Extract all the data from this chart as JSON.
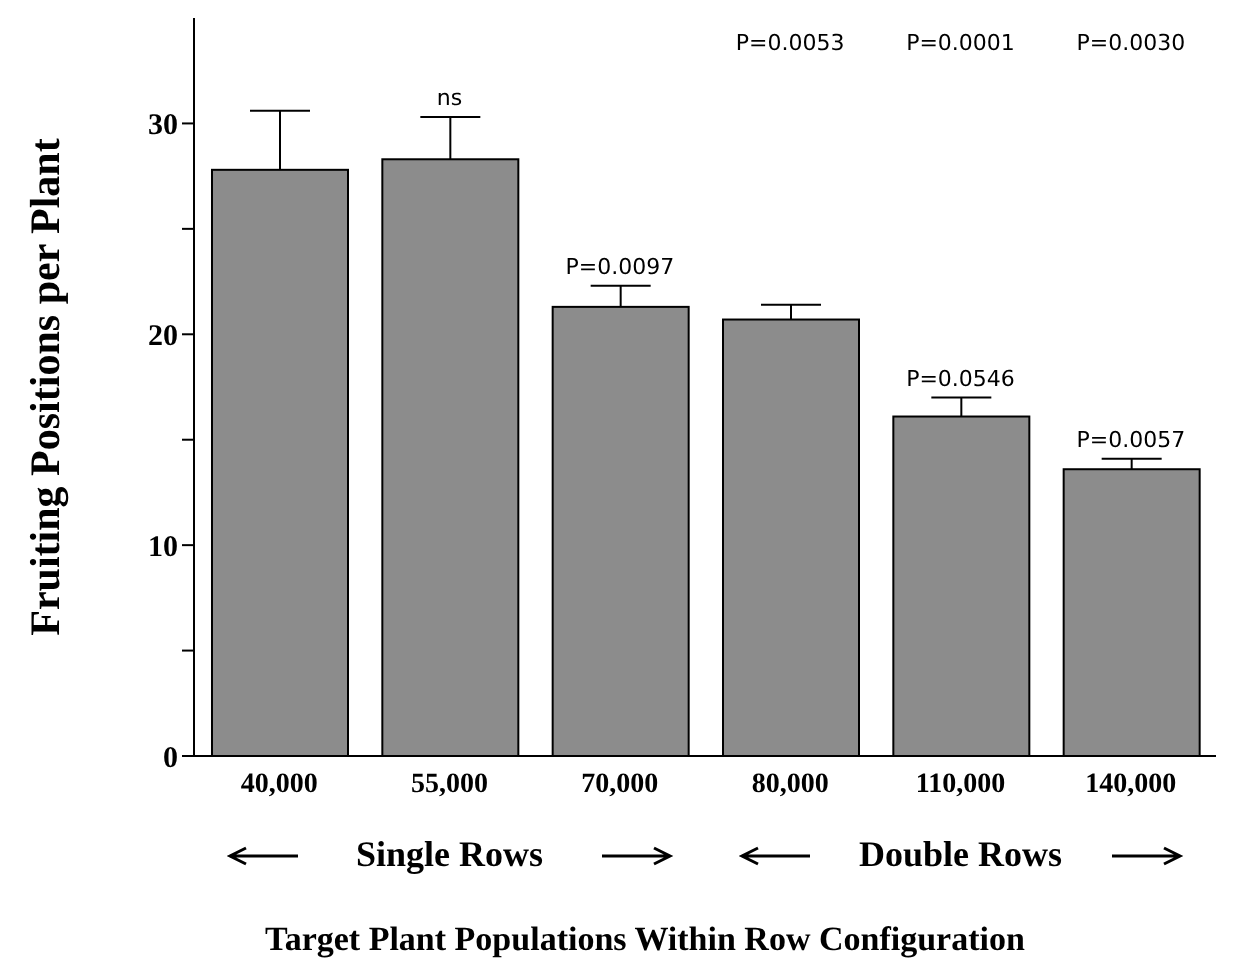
{
  "chart_data": {
    "type": "bar",
    "xlabel": "Target Plant Populations Within Row Configuration",
    "ylabel": "Fruiting Positions per Plant",
    "categories": [
      "40,000",
      "55,000",
      "70,000",
      "80,000",
      "110,000",
      "140,000"
    ],
    "values": [
      27.8,
      28.3,
      21.3,
      20.7,
      16.1,
      13.6
    ],
    "errors": [
      [
        27.8,
        30.6
      ],
      [
        28.3,
        30.3
      ],
      [
        21.3,
        22.3
      ],
      [
        20.7,
        21.4
      ],
      [
        16.1,
        17.0
      ],
      [
        13.6,
        14.1
      ]
    ],
    "color": "#8c8c8c",
    "ylim": [
      0,
      35
    ],
    "yticks": [
      0,
      {
        "value": 5,
        "label": null
      },
      10,
      {
        "value": 15,
        "label": null
      },
      20,
      {
        "value": 25,
        "label": null
      },
      30
    ],
    "annotations": [
      {
        "text": "ns",
        "x": "55,000",
        "y": 30.3
      },
      {
        "text": "P=0.0097",
        "x": "70,000",
        "y": 22.3
      },
      {
        "text": "P=0.0546",
        "x": "110,000",
        "y": 17.0
      },
      {
        "text": "P=0.0057",
        "x": "140,000",
        "y": 14.1
      },
      "P=0.0053",
      "P=0.0001",
      "P=0.0030",
      "Single Rows",
      "Double Rows"
    ]
  }
}
